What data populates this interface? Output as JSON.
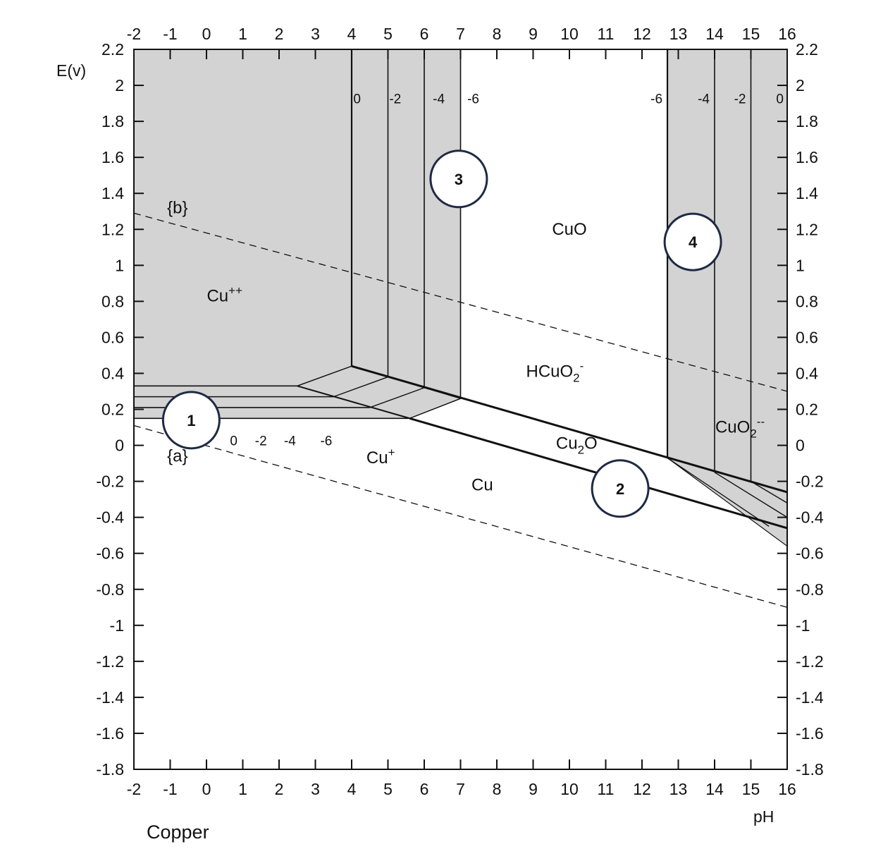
{
  "diagram": {
    "caption": "Copper",
    "y_axis_title": "E(v)",
    "x_axis_title": "pH",
    "x_ticks": [
      -2,
      -1,
      0,
      1,
      2,
      3,
      4,
      5,
      6,
      7,
      8,
      9,
      10,
      11,
      12,
      13,
      14,
      15,
      16
    ],
    "y_ticks": [
      2.2,
      2,
      1.8,
      1.6,
      1.4,
      1.2,
      1,
      0.8,
      0.6,
      0.4,
      0.2,
      0,
      -0.2,
      -0.4,
      -0.6,
      -0.8,
      -1,
      -1.2,
      -1.4,
      -1.6,
      -1.8
    ],
    "x_range": [
      -2,
      16
    ],
    "y_range": [
      -1.8,
      2.2
    ],
    "colors": {
      "shaded": "#d3d3d3",
      "line": "#111111",
      "marker_border": "#1f2a44",
      "background": "#ffffff"
    },
    "regions": [
      {
        "id": "cupp",
        "text": "Cu",
        "sup": "++",
        "sub": "",
        "ph": 0.5,
        "e": 0.8
      },
      {
        "id": "cuo",
        "text": "CuO",
        "sup": "",
        "sub": "",
        "ph": 10,
        "e": 1.17
      },
      {
        "id": "hcuo2",
        "text": "HCuO",
        "sub": "2",
        "sup": "-",
        "ph": 9.6,
        "e": 0.38
      },
      {
        "id": "cuo2",
        "text": "CuO",
        "sub": "2",
        "sup": "--",
        "ph": 14.7,
        "e": 0.07
      },
      {
        "id": "cu2o",
        "text": "Cu",
        "sub": "2",
        "sup": "",
        "tail": "O",
        "ph": 10.2,
        "e": -0.02
      },
      {
        "id": "cup",
        "text": "Cu",
        "sup": "+",
        "sub": "",
        "ph": 4.8,
        "e": -0.1
      },
      {
        "id": "cu",
        "text": "Cu",
        "sup": "",
        "sub": "",
        "ph": 7.6,
        "e": -0.25
      }
    ],
    "water_lines": [
      {
        "label": "{b}",
        "from": [
          -2,
          1.29
        ],
        "to": [
          16,
          0.3
        ],
        "label_ph": -0.8,
        "label_e": 1.29
      },
      {
        "label": "{a}",
        "from": [
          -2,
          0.11
        ],
        "to": [
          16,
          -0.9
        ],
        "label_ph": -0.8,
        "label_e": -0.09
      }
    ],
    "concentration_labels": [
      {
        "text": "0",
        "ph": 4.15,
        "e": 1.9
      },
      {
        "text": "-2",
        "ph": 5.2,
        "e": 1.9
      },
      {
        "text": "-4",
        "ph": 6.4,
        "e": 1.9
      },
      {
        "text": "-6",
        "ph": 7.35,
        "e": 1.9
      },
      {
        "text": "-6",
        "ph": 12.4,
        "e": 1.9
      },
      {
        "text": "-4",
        "ph": 13.7,
        "e": 1.9
      },
      {
        "text": "-2",
        "ph": 14.7,
        "e": 1.9
      },
      {
        "text": "0",
        "ph": 15.8,
        "e": 1.9
      },
      {
        "text": "0",
        "ph": 0.75,
        "e": 0.0
      },
      {
        "text": "-2",
        "ph": 1.5,
        "e": 0.0
      },
      {
        "text": "-4",
        "ph": 2.3,
        "e": 0.0
      },
      {
        "text": "-6",
        "ph": 3.3,
        "e": 0.0
      }
    ],
    "markers": [
      {
        "num": "1",
        "ph": -0.42,
        "e": 0.14
      },
      {
        "num": "2",
        "ph": 11.4,
        "e": -0.24
      },
      {
        "num": "3",
        "ph": 6.95,
        "e": 1.48
      },
      {
        "num": "4",
        "ph": 13.4,
        "e": 1.13
      }
    ]
  }
}
